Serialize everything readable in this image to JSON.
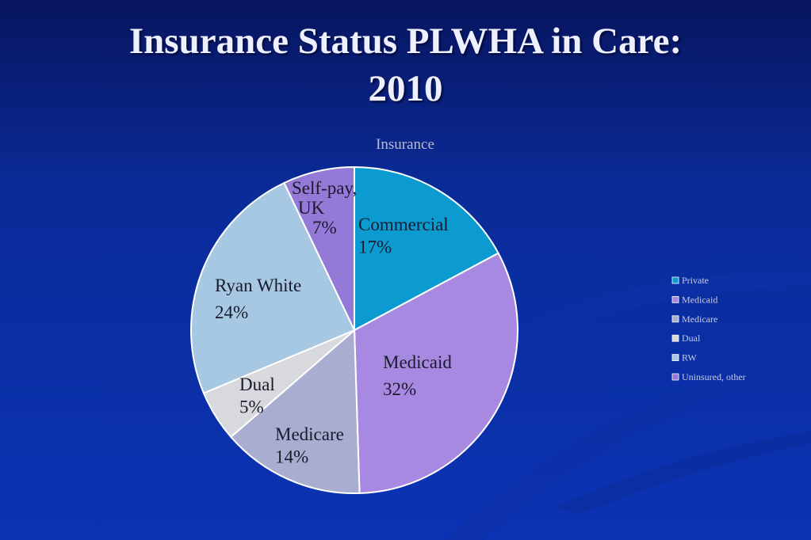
{
  "slide": {
    "title_line1": "Insurance Status PLWHA in Care:",
    "title_line2": "2010"
  },
  "colors": {
    "background": "#0a2a96",
    "title_text": "#eef0ff"
  },
  "chart_data": {
    "type": "pie",
    "title": "Insurance",
    "start_angle_deg": 0,
    "direction": "clockwise",
    "slices": [
      {
        "label_lines": [
          "Commercial",
          "17%"
        ],
        "legend": "Private",
        "value": 17,
        "color": "#0b9bd0"
      },
      {
        "label_lines": [
          "Medicaid",
          "32%"
        ],
        "legend": "Medicaid",
        "value": 32,
        "color": "#a889e2"
      },
      {
        "label_lines": [
          "Medicare",
          "14%"
        ],
        "legend": "Medicare",
        "value": 14,
        "color": "#a9aed0"
      },
      {
        "label_lines": [
          "Dual",
          "5%"
        ],
        "legend": "Dual",
        "value": 5,
        "color": "#d8d9dc"
      },
      {
        "label_lines": [
          "Ryan White",
          "24%"
        ],
        "legend": "RW",
        "value": 24,
        "color": "#a6c8e2"
      },
      {
        "label_lines": [
          "Self-pay,",
          "UK",
          "7%"
        ],
        "legend": "Uninsured, other",
        "value": 7,
        "color": "#9479d6"
      }
    ],
    "legend_position": "right"
  }
}
